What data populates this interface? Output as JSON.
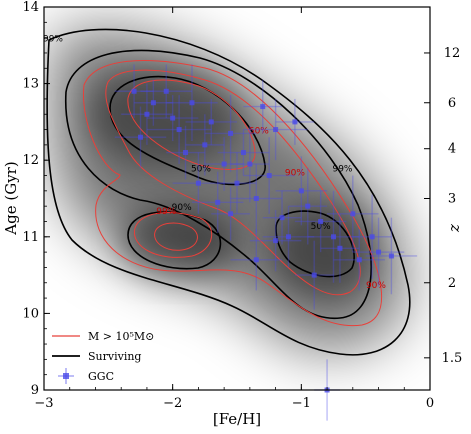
{
  "chart_data": {
    "type": "scatter",
    "xlabel": "[Fe/H]",
    "ylabel": "Age (Gyr)",
    "ylabel_right": "z",
    "xlim": [
      -3,
      0
    ],
    "ylim": [
      9,
      14
    ],
    "x_ticks": [
      -3,
      -2,
      -1,
      0
    ],
    "x_tick_labels": [
      "−3",
      "−2",
      "−1",
      "0"
    ],
    "y_ticks": [
      9,
      10,
      11,
      12,
      13,
      14
    ],
    "y_tick_labels": [
      "9",
      "10",
      "11",
      "12",
      "13",
      "14"
    ],
    "z_ticks": [
      {
        "label": "12",
        "age": 13.4
      },
      {
        "label": "6",
        "age": 12.75
      },
      {
        "label": "4",
        "age": 12.15
      },
      {
        "label": "3",
        "age": 11.5
      },
      {
        "label": "2",
        "age": 10.4
      },
      {
        "label": "1.5",
        "age": 9.42
      }
    ],
    "legend": [
      {
        "label": "M > 10⁵M⊙",
        "style": "red-line"
      },
      {
        "label": "Surviving",
        "style": "black-line"
      },
      {
        "label": "GGC",
        "style": "blue-marker"
      }
    ],
    "contour_labels": [
      {
        "text": "99%",
        "x": -2.93,
        "y": 13.55,
        "color": "#000000"
      },
      {
        "text": "50%",
        "x": -1.78,
        "y": 11.85,
        "color": "#000000"
      },
      {
        "text": "90%",
        "x": -1.93,
        "y": 11.35,
        "color": "#000000"
      },
      {
        "text": "50%",
        "x": -0.85,
        "y": 11.1,
        "color": "#000000"
      },
      {
        "text": "99%",
        "x": -0.68,
        "y": 11.85,
        "color": "#000000"
      },
      {
        "text": "50%",
        "x": -1.33,
        "y": 12.35,
        "color": "#cc0000"
      },
      {
        "text": "90%",
        "x": -1.05,
        "y": 11.8,
        "color": "#cc0000"
      },
      {
        "text": "99%",
        "x": -2.05,
        "y": 11.3,
        "color": "#cc0000"
      },
      {
        "text": "90%",
        "x": -0.42,
        "y": 10.33,
        "color": "#cc0000"
      }
    ],
    "series": [
      {
        "points": [
          {
            "x": -2.3,
            "y": 12.9,
            "xerr": 0.15,
            "yerr": 0.35
          },
          {
            "x": -2.2,
            "y": 12.6,
            "xerr": 0.2,
            "yerr": 0.4
          },
          {
            "x": -2.15,
            "y": 12.75,
            "xerr": 0.15,
            "yerr": 0.3
          },
          {
            "x": -2.05,
            "y": 12.9,
            "xerr": 0.2,
            "yerr": 0.35
          },
          {
            "x": -1.95,
            "y": 12.4,
            "xerr": 0.25,
            "yerr": 0.45
          },
          {
            "x": -1.85,
            "y": 12.75,
            "xerr": 0.2,
            "yerr": 0.5
          },
          {
            "x": -1.75,
            "y": 12.2,
            "xerr": 0.15,
            "yerr": 0.4
          },
          {
            "x": -1.7,
            "y": 12.5,
            "xerr": 0.2,
            "yerr": 0.3
          },
          {
            "x": -1.6,
            "y": 11.95,
            "xerr": 0.15,
            "yerr": 0.35
          },
          {
            "x": -1.55,
            "y": 12.35,
            "xerr": 0.2,
            "yerr": 0.5
          },
          {
            "x": -1.5,
            "y": 11.7,
            "xerr": 0.15,
            "yerr": 0.4
          },
          {
            "x": -1.45,
            "y": 12.1,
            "xerr": 0.2,
            "yerr": 0.3
          },
          {
            "x": -1.35,
            "y": 11.5,
            "xerr": 0.2,
            "yerr": 0.45
          },
          {
            "x": -1.3,
            "y": 12.7,
            "xerr": 0.15,
            "yerr": 0.35
          },
          {
            "x": -1.25,
            "y": 11.8,
            "xerr": 0.2,
            "yerr": 0.5
          },
          {
            "x": -1.2,
            "y": 12.4,
            "xerr": 0.25,
            "yerr": 0.4
          },
          {
            "x": -1.15,
            "y": 11.25,
            "xerr": 0.15,
            "yerr": 0.35
          },
          {
            "x": -1.1,
            "y": 11.0,
            "xerr": 0.2,
            "yerr": 0.4
          },
          {
            "x": -1.05,
            "y": 12.5,
            "xerr": 0.15,
            "yerr": 0.3
          },
          {
            "x": -1.0,
            "y": 11.6,
            "xerr": 0.2,
            "yerr": 0.45
          },
          {
            "x": -0.95,
            "y": 11.4,
            "xerr": 0.15,
            "yerr": 0.5
          },
          {
            "x": -0.85,
            "y": 11.2,
            "xerr": 0.2,
            "yerr": 0.4
          },
          {
            "x": -0.75,
            "y": 11.0,
            "xerr": 0.2,
            "yerr": 0.6
          },
          {
            "x": -0.7,
            "y": 10.85,
            "xerr": 0.15,
            "yerr": 0.45
          },
          {
            "x": -0.6,
            "y": 11.3,
            "xerr": 0.2,
            "yerr": 0.5
          },
          {
            "x": -0.55,
            "y": 10.7,
            "xerr": 0.2,
            "yerr": 0.4
          },
          {
            "x": -0.45,
            "y": 11.0,
            "xerr": 0.15,
            "yerr": 0.55
          },
          {
            "x": -0.4,
            "y": 10.8,
            "xerr": 0.2,
            "yerr": 0.45
          },
          {
            "x": -0.3,
            "y": 10.75,
            "xerr": 0.2,
            "yerr": 0.5
          },
          {
            "x": -0.8,
            "y": 9.0,
            "xerr": 0.1,
            "yerr": 0.4
          },
          {
            "x": -1.8,
            "y": 11.7,
            "xerr": 0.2,
            "yerr": 0.4
          },
          {
            "x": -1.9,
            "y": 12.1,
            "xerr": 0.15,
            "yerr": 0.35
          },
          {
            "x": -1.65,
            "y": 11.45,
            "xerr": 0.2,
            "yerr": 0.4
          },
          {
            "x": -1.4,
            "y": 11.95,
            "xerr": 0.15,
            "yerr": 0.5
          },
          {
            "x": -2.25,
            "y": 12.3,
            "xerr": 0.2,
            "yerr": 0.4
          },
          {
            "x": -1.55,
            "y": 11.3,
            "xerr": 0.15,
            "yerr": 0.35
          },
          {
            "x": -1.2,
            "y": 10.95,
            "xerr": 0.2,
            "yerr": 0.4
          },
          {
            "x": -0.9,
            "y": 10.5,
            "xerr": 0.15,
            "yerr": 0.45
          },
          {
            "x": -1.35,
            "y": 10.7,
            "xerr": 0.2,
            "yerr": 0.4
          },
          {
            "x": -2.0,
            "y": 12.55,
            "xerr": 0.2,
            "yerr": 0.3
          }
        ]
      }
    ],
    "colors": {
      "red_contour": "#e8403a",
      "black_contour": "#000000",
      "ggc_marker": "#4a4ae8",
      "density_fill": "#555555"
    }
  }
}
